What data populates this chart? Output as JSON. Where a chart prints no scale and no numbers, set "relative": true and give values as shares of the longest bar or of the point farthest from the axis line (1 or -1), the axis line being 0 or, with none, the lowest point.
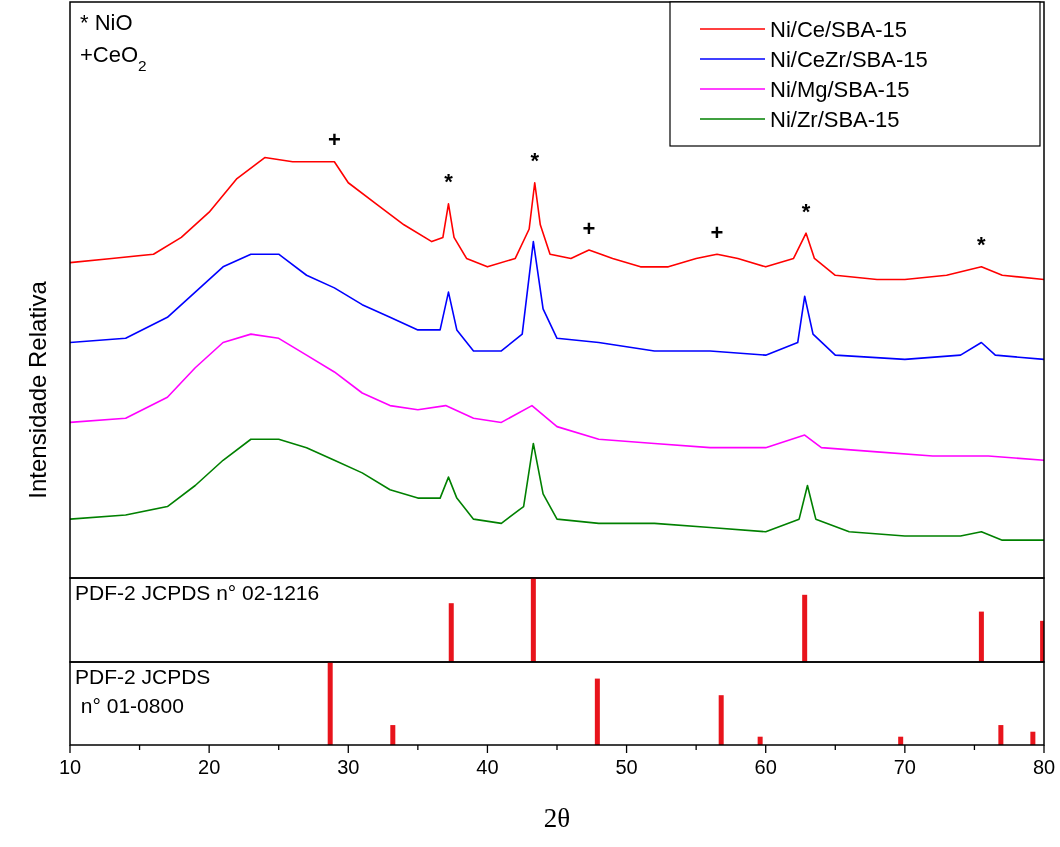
{
  "chart_data": [
    {
      "type": "line",
      "relative": true,
      "ylabel": "Intensidade Relativa",
      "xlim": [
        10,
        80
      ],
      "tick_labels": false,
      "legend": "top right",
      "annotations": [
        "* NiO",
        "+CeO$_{2}$",
        {
          "text": "+",
          "x": 29,
          "y": 0.99
        },
        {
          "text": "*",
          "x": 37.2,
          "y": 0.89
        },
        {
          "text": "*",
          "x": 43.4,
          "y": 0.94
        },
        {
          "text": "+",
          "x": 47.3,
          "y": 0.78
        },
        {
          "text": "+",
          "x": 56.5,
          "y": 0.77
        },
        {
          "text": "*",
          "x": 62.9,
          "y": 0.82
        },
        {
          "text": "*",
          "x": 75.5,
          "y": 0.74
        }
      ],
      "series": [
        {
          "name": "Ni/Ce/SBA-15",
          "color": "#ff0000",
          "x": [
            10,
            13,
            16,
            18,
            20,
            22,
            24,
            26,
            28,
            29,
            30,
            32,
            34,
            36,
            36.8,
            37.2,
            37.6,
            38.5,
            40,
            42,
            43,
            43.4,
            43.8,
            44.5,
            46,
            47.3,
            49,
            51,
            53,
            55,
            56.5,
            58,
            60,
            62,
            62.9,
            63.5,
            65,
            68,
            70,
            73,
            75.5,
            77,
            80
          ],
          "values": [
            0.75,
            0.76,
            0.77,
            0.81,
            0.87,
            0.95,
            1.0,
            0.99,
            0.99,
            0.99,
            0.94,
            0.89,
            0.84,
            0.8,
            0.81,
            0.89,
            0.81,
            0.76,
            0.74,
            0.76,
            0.83,
            0.94,
            0.84,
            0.77,
            0.76,
            0.78,
            0.76,
            0.74,
            0.74,
            0.76,
            0.77,
            0.76,
            0.74,
            0.76,
            0.82,
            0.76,
            0.72,
            0.71,
            0.71,
            0.72,
            0.74,
            0.72,
            0.71
          ]
        },
        {
          "name": "Ni/CeZr/SBA-15",
          "color": "#0000ff",
          "x": [
            10,
            14,
            17,
            19,
            21,
            23,
            25,
            27,
            29,
            31,
            33,
            35,
            36.6,
            37.2,
            37.8,
            39,
            41,
            42.5,
            43.3,
            44,
            45,
            48,
            52,
            56,
            60,
            62.3,
            62.8,
            63.4,
            65,
            70,
            74,
            75.5,
            76.5,
            80
          ],
          "values": [
            0.56,
            0.57,
            0.62,
            0.68,
            0.74,
            0.77,
            0.77,
            0.72,
            0.69,
            0.65,
            0.62,
            0.59,
            0.59,
            0.68,
            0.59,
            0.54,
            0.54,
            0.58,
            0.8,
            0.64,
            0.57,
            0.56,
            0.54,
            0.54,
            0.53,
            0.56,
            0.67,
            0.58,
            0.53,
            0.52,
            0.53,
            0.56,
            0.53,
            0.52
          ]
        },
        {
          "name": "Ni/Mg/SBA-15",
          "color": "#ff00ff",
          "x": [
            10,
            14,
            17,
            19,
            21,
            23,
            25,
            27,
            29,
            31,
            33,
            35,
            37,
            39,
            41,
            43.2,
            45,
            48,
            52,
            56,
            60,
            62.8,
            64,
            68,
            72,
            76,
            80
          ],
          "values": [
            0.37,
            0.38,
            0.43,
            0.5,
            0.56,
            0.58,
            0.57,
            0.53,
            0.49,
            0.44,
            0.41,
            0.4,
            0.41,
            0.38,
            0.37,
            0.41,
            0.36,
            0.33,
            0.32,
            0.31,
            0.31,
            0.34,
            0.31,
            0.3,
            0.29,
            0.29,
            0.28
          ]
        },
        {
          "name": "Ni/Zr/SBA-15",
          "color": "#008000",
          "x": [
            10,
            14,
            17,
            19,
            21,
            23,
            25,
            27,
            29,
            31,
            33,
            35,
            36.6,
            37.2,
            37.8,
            39,
            41,
            42.6,
            43.3,
            44,
            45,
            48,
            52,
            56,
            60,
            62.4,
            63,
            63.6,
            66,
            70,
            74,
            75.5,
            77,
            80
          ],
          "values": [
            0.14,
            0.15,
            0.17,
            0.22,
            0.28,
            0.33,
            0.33,
            0.31,
            0.28,
            0.25,
            0.21,
            0.19,
            0.19,
            0.24,
            0.19,
            0.14,
            0.13,
            0.17,
            0.32,
            0.2,
            0.14,
            0.13,
            0.13,
            0.12,
            0.11,
            0.14,
            0.22,
            0.14,
            0.11,
            0.1,
            0.1,
            0.11,
            0.09,
            0.09
          ]
        }
      ]
    },
    {
      "type": "bar",
      "relative": true,
      "xlim": [
        10,
        80
      ],
      "tick_labels": false,
      "annotations": [
        "PDF-2 JCPDS n° 02-1216"
      ],
      "x": [
        37.4,
        43.3,
        62.8,
        75.5,
        79.9
      ],
      "values": [
        0.7,
        1.0,
        0.8,
        0.6,
        0.49
      ],
      "color": "#e8141c"
    },
    {
      "type": "bar",
      "relative": true,
      "xlim": [
        10,
        80
      ],
      "tick_labels": "x",
      "xlabel": "2θ",
      "annotations": [
        "PDF-2 JCPDS\n n° 01-0800"
      ],
      "xticks": [
        10,
        {
          "value": 15,
          "label": null
        },
        20,
        {
          "value": 25,
          "label": null
        },
        30,
        {
          "value": 35,
          "label": null
        },
        40,
        {
          "value": 45,
          "label": null
        },
        50,
        {
          "value": 55,
          "label": null
        },
        60,
        {
          "value": 65,
          "label": null
        },
        70,
        {
          "value": 75,
          "label": null
        },
        80
      ],
      "x": [
        28.7,
        33.2,
        47.9,
        56.8,
        59.6,
        69.7,
        76.9,
        79.2
      ],
      "values": [
        1.0,
        0.24,
        0.8,
        0.6,
        0.1,
        0.1,
        0.24,
        0.16
      ],
      "color": "#e8141c"
    }
  ]
}
